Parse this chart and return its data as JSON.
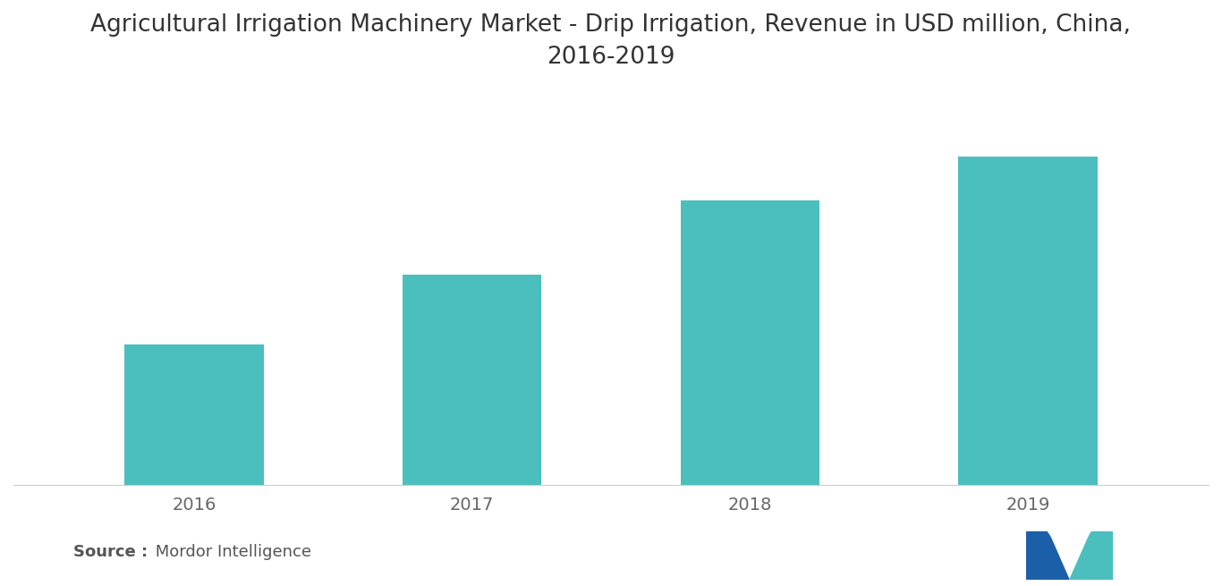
{
  "title": "Agricultural Irrigation Machinery Market - Drip Irrigation, Revenue in USD million, China,\n2016-2019",
  "categories": [
    "2016",
    "2017",
    "2018",
    "2019"
  ],
  "values": [
    32,
    48,
    65,
    75
  ],
  "bar_color": "#4BBFBE",
  "background_color": "#ffffff",
  "source_bold": "Source :",
  "source_normal": " Mordor Intelligence",
  "title_fontsize": 19,
  "tick_fontsize": 14,
  "source_fontsize": 13,
  "ylim": [
    0,
    90
  ],
  "bar_width": 0.5,
  "logo_dark": "#1B5FA8",
  "logo_teal": "#4BBFBE"
}
